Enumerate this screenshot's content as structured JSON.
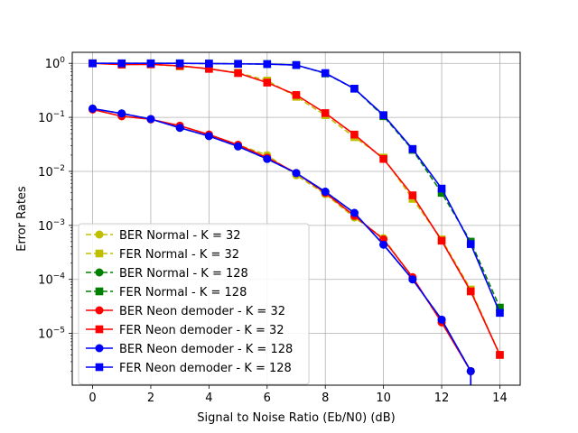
{
  "chart_data": {
    "type": "line",
    "xlabel": "Signal to Noise Ratio (Eb/N0) (dB)",
    "ylabel": "Error Rates",
    "xlim": [
      -0.7,
      14.7
    ],
    "ylim": [
      1.1e-06,
      1.6
    ],
    "yscale": "log",
    "grid": true,
    "legend_position": "lower-left",
    "xticks": [
      "0",
      "2",
      "4",
      "6",
      "8",
      "10",
      "12",
      "14"
    ],
    "yticks": [
      {
        "base": "10",
        "exp": "0",
        "value": 1
      },
      {
        "base": "10",
        "exp": "−1",
        "value": 0.1
      },
      {
        "base": "10",
        "exp": "−2",
        "value": 0.01
      },
      {
        "base": "10",
        "exp": "−3",
        "value": 0.001
      },
      {
        "base": "10",
        "exp": "−4",
        "value": 0.0001
      },
      {
        "base": "10",
        "exp": "−5",
        "value": 1e-05
      }
    ],
    "series": [
      {
        "name": "BER Normal - K = 32",
        "color": "#bfbf00",
        "dash": "dashed",
        "marker": "circle",
        "x": [
          0,
          1,
          2,
          3,
          4,
          5,
          6,
          7,
          8,
          9,
          10,
          11,
          12,
          13
        ],
        "y": [
          0.14,
          0.105,
          0.092,
          0.07,
          0.048,
          0.031,
          0.02,
          0.0085,
          0.0038,
          0.0014,
          0.00058,
          0.000105,
          1.6e-05,
          2e-06
        ]
      },
      {
        "name": "FER Normal - K = 32",
        "color": "#bfbf00",
        "dash": "dashed",
        "marker": "square",
        "x": [
          0,
          1,
          2,
          3,
          4,
          5,
          6,
          7,
          8,
          9,
          10,
          11,
          12,
          13,
          14
        ],
        "y": [
          1.0,
          0.95,
          0.96,
          0.88,
          0.8,
          0.67,
          0.48,
          0.24,
          0.11,
          0.043,
          0.018,
          0.0031,
          0.00055,
          6.5e-05,
          4e-06
        ]
      },
      {
        "name": "BER Normal - K = 128",
        "color": "#008000",
        "dash": "dashed",
        "marker": "circle",
        "x": [
          0,
          1,
          2,
          3,
          4,
          5,
          6,
          7,
          8,
          9,
          10,
          11,
          12,
          13
        ],
        "y": [
          0.145,
          0.118,
          0.093,
          0.064,
          0.045,
          0.029,
          0.017,
          0.0093,
          0.0042,
          0.0017,
          0.00044,
          0.0001,
          1.8e-05,
          2e-06
        ]
      },
      {
        "name": "FER Normal - K = 128",
        "color": "#008000",
        "dash": "dashed",
        "marker": "square",
        "x": [
          0,
          1,
          2,
          3,
          4,
          5,
          6,
          7,
          8,
          9,
          10,
          11,
          12,
          13,
          14
        ],
        "y": [
          1.0,
          1.0,
          1.0,
          1.0,
          0.99,
          0.98,
          0.97,
          0.93,
          0.65,
          0.34,
          0.105,
          0.025,
          0.004,
          0.0005,
          3e-05
        ]
      },
      {
        "name": "BER Neon demoder - K = 32",
        "color": "#ff0000",
        "dash": "solid",
        "marker": "circle",
        "x": [
          0,
          1,
          2,
          3,
          4,
          5,
          6,
          7,
          8,
          9,
          10,
          11,
          12,
          13
        ],
        "y": [
          0.14,
          0.105,
          0.092,
          0.07,
          0.048,
          0.031,
          0.018,
          0.0093,
          0.004,
          0.0015,
          0.00055,
          0.00011,
          1.6e-05,
          2e-06
        ]
      },
      {
        "name": "FER Neon demoder - K = 32",
        "color": "#ff0000",
        "dash": "solid",
        "marker": "square",
        "x": [
          0,
          1,
          2,
          3,
          4,
          5,
          6,
          7,
          8,
          9,
          10,
          11,
          12,
          13,
          14
        ],
        "y": [
          1.0,
          0.95,
          0.96,
          0.9,
          0.79,
          0.66,
          0.44,
          0.26,
          0.12,
          0.048,
          0.017,
          0.0036,
          0.00052,
          6e-05,
          4e-06
        ]
      },
      {
        "name": "BER Neon demoder - K = 128",
        "color": "#0000ff",
        "dash": "solid",
        "marker": "circle",
        "x": [
          0,
          1,
          2,
          3,
          4,
          5,
          6,
          7,
          8,
          9,
          10,
          11,
          12,
          13
        ],
        "y": [
          0.145,
          0.118,
          0.093,
          0.064,
          0.045,
          0.029,
          0.017,
          0.0093,
          0.0042,
          0.0017,
          0.00044,
          0.0001,
          1.8e-05,
          2e-06
        ]
      },
      {
        "name": "FER Neon demoder - K = 128",
        "color": "#0000ff",
        "dash": "solid",
        "marker": "square",
        "x": [
          0,
          1,
          2,
          3,
          4,
          5,
          6,
          7,
          8,
          9,
          10,
          11,
          12,
          13,
          14
        ],
        "y": [
          1.0,
          1.0,
          1.0,
          1.0,
          0.99,
          0.98,
          0.97,
          0.93,
          0.66,
          0.34,
          0.11,
          0.026,
          0.0048,
          0.00045,
          2.4e-05
        ]
      }
    ]
  }
}
